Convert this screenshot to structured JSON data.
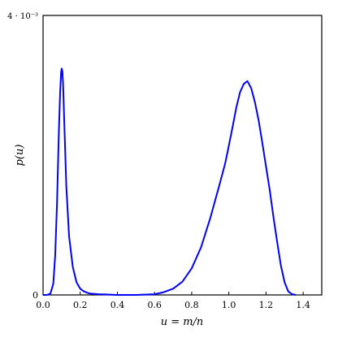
{
  "chart_data": {
    "type": "line",
    "title": "",
    "xlabel": "u = m/n",
    "ylabel": "p(u)",
    "xlim": [
      0.0,
      1.5
    ],
    "ylim": [
      0,
      0.004
    ],
    "grid": false,
    "x_ticks": [
      "0.0",
      "0.2",
      "0.4",
      "0.6",
      "0.8",
      "1.0",
      "1.2",
      "1.4"
    ],
    "y_ticks": [
      "0",
      "4 · 10⁻³"
    ],
    "color": "#0000ff",
    "series": [
      {
        "x": [
          0.0,
          0.02,
          0.04,
          0.055,
          0.065,
          0.075,
          0.085,
          0.092,
          0.097,
          0.1,
          0.104,
          0.108,
          0.115,
          0.125,
          0.14,
          0.16,
          0.18,
          0.2,
          0.22,
          0.25,
          0.3,
          0.4,
          0.5,
          0.6,
          0.65,
          0.7,
          0.75,
          0.8,
          0.85,
          0.9,
          0.95,
          0.98,
          1.0,
          1.02,
          1.04,
          1.06,
          1.08,
          1.1,
          1.12,
          1.14,
          1.16,
          1.18,
          1.2,
          1.22,
          1.24,
          1.26,
          1.28,
          1.3,
          1.32,
          1.34,
          1.36
        ],
        "y": [
          0.0,
          0.0,
          2e-05,
          0.00016,
          0.00056,
          0.00132,
          0.00232,
          0.0029,
          0.00318,
          0.00324,
          0.0032,
          0.003,
          0.0024,
          0.00156,
          0.00084,
          0.0004,
          0.00018,
          9e-05,
          5e-05,
          2e-05,
          1e-05,
          0.0,
          0.0,
          1e-05,
          4e-05,
          9e-05,
          0.00019,
          0.00038,
          0.00068,
          0.0011,
          0.00158,
          0.00188,
          0.00214,
          0.0024,
          0.00268,
          0.0029,
          0.00302,
          0.00306,
          0.00296,
          0.00276,
          0.0025,
          0.00218,
          0.00184,
          0.0015,
          0.00112,
          0.00076,
          0.00042,
          0.00018,
          5e-05,
          1e-05,
          0.0
        ]
      }
    ]
  }
}
